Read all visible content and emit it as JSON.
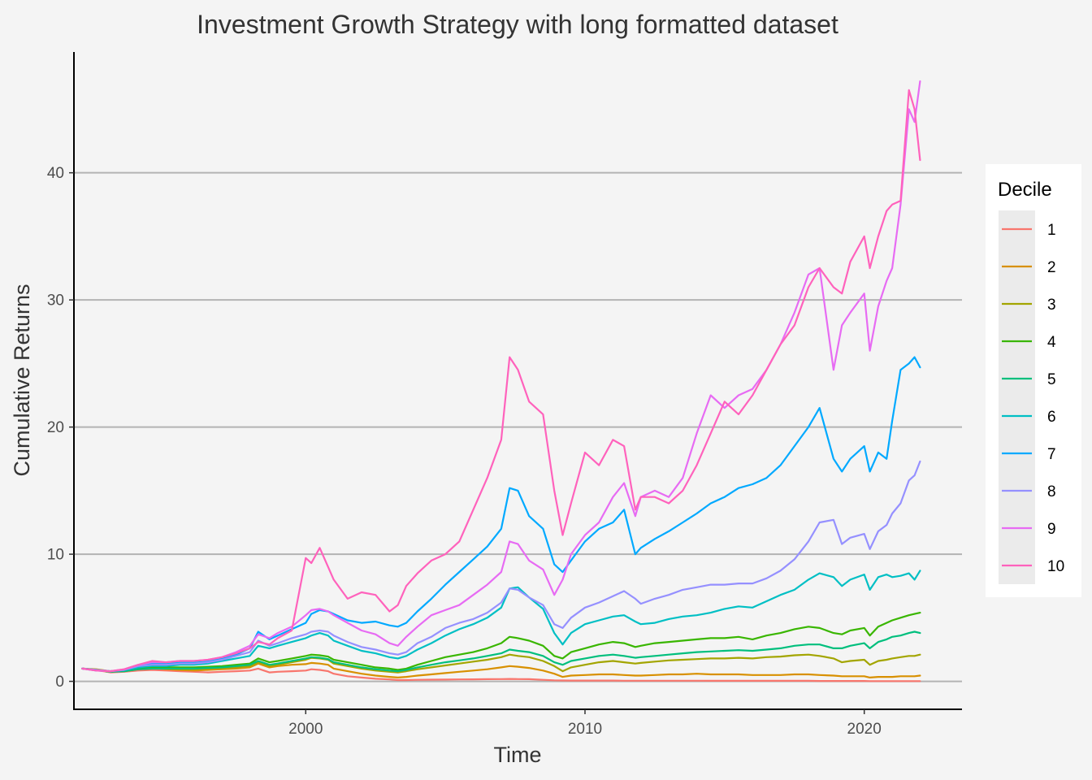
{
  "chart_data": {
    "type": "line",
    "title": "Investment Growth Strategy with long formatted dataset",
    "xlabel": "Time",
    "ylabel": "Cumulative Returns",
    "xlim": [
      1991.7,
      2023.5
    ],
    "ylim": [
      -2.2,
      49.5
    ],
    "x_ticks": [
      2000,
      2010,
      2020
    ],
    "x_tick_labels": [
      "2000",
      "2010",
      "2020"
    ],
    "y_ticks": [
      0,
      10,
      20,
      30,
      40
    ],
    "y_tick_labels": [
      "0",
      "10",
      "20",
      "30",
      "40"
    ],
    "grid": "horizontal major",
    "legend": {
      "title": "Decile",
      "position": "right"
    },
    "x": [
      1992.0,
      1992.5,
      1993.0,
      1993.5,
      1994.0,
      1994.5,
      1995.0,
      1995.5,
      1996.0,
      1996.5,
      1997.0,
      1997.5,
      1998.0,
      1998.3,
      1998.7,
      1999.0,
      1999.5,
      2000.0,
      2000.2,
      2000.5,
      2000.8,
      2001.0,
      2001.5,
      2002.0,
      2002.5,
      2003.0,
      2003.3,
      2003.6,
      2004.0,
      2004.5,
      2005.0,
      2005.5,
      2006.0,
      2006.5,
      2007.0,
      2007.3,
      2007.6,
      2008.0,
      2008.5,
      2008.9,
      2009.2,
      2009.5,
      2010.0,
      2010.5,
      2011.0,
      2011.4,
      2011.8,
      2012.0,
      2012.5,
      2013.0,
      2013.5,
      2014.0,
      2014.5,
      2015.0,
      2015.5,
      2016.0,
      2016.5,
      2017.0,
      2017.5,
      2018.0,
      2018.4,
      2018.9,
      2019.2,
      2019.5,
      2020.0,
      2020.2,
      2020.5,
      2020.8,
      2021.0,
      2021.3,
      2021.6,
      2021.8,
      2022.0
    ],
    "series": [
      {
        "name": "1",
        "color": "#F8766D",
        "values": [
          1.0,
          0.9,
          0.7,
          0.75,
          0.85,
          0.9,
          0.85,
          0.8,
          0.75,
          0.7,
          0.75,
          0.8,
          0.85,
          1.0,
          0.7,
          0.75,
          0.8,
          0.85,
          0.95,
          0.9,
          0.8,
          0.6,
          0.4,
          0.3,
          0.2,
          0.15,
          0.1,
          0.1,
          0.12,
          0.13,
          0.14,
          0.15,
          0.16,
          0.17,
          0.18,
          0.19,
          0.18,
          0.17,
          0.12,
          0.08,
          0.07,
          0.06,
          0.06,
          0.06,
          0.06,
          0.05,
          0.05,
          0.05,
          0.05,
          0.05,
          0.05,
          0.05,
          0.04,
          0.04,
          0.04,
          0.04,
          0.04,
          0.04,
          0.04,
          0.04,
          0.03,
          0.03,
          0.03,
          0.03,
          0.03,
          0.02,
          0.02,
          0.02,
          0.02,
          0.02,
          0.02,
          0.02,
          0.02
        ]
      },
      {
        "name": "2",
        "color": "#D89000",
        "values": [
          1.0,
          0.95,
          0.8,
          0.85,
          1.0,
          1.05,
          0.95,
          0.9,
          0.85,
          0.9,
          0.95,
          1.0,
          1.1,
          1.4,
          1.1,
          1.2,
          1.3,
          1.35,
          1.45,
          1.4,
          1.3,
          1.0,
          0.8,
          0.6,
          0.45,
          0.35,
          0.3,
          0.35,
          0.45,
          0.55,
          0.65,
          0.75,
          0.85,
          0.95,
          1.1,
          1.2,
          1.15,
          1.05,
          0.85,
          0.6,
          0.35,
          0.45,
          0.5,
          0.55,
          0.55,
          0.5,
          0.45,
          0.45,
          0.5,
          0.55,
          0.55,
          0.6,
          0.55,
          0.55,
          0.55,
          0.5,
          0.5,
          0.5,
          0.55,
          0.55,
          0.5,
          0.45,
          0.4,
          0.4,
          0.4,
          0.3,
          0.35,
          0.35,
          0.35,
          0.4,
          0.4,
          0.4,
          0.45
        ]
      },
      {
        "name": "3",
        "color": "#A3A500",
        "values": [
          1.0,
          0.9,
          0.75,
          0.8,
          0.95,
          1.0,
          1.0,
          0.95,
          0.95,
          1.0,
          1.05,
          1.1,
          1.2,
          1.5,
          1.2,
          1.3,
          1.5,
          1.7,
          1.85,
          1.8,
          1.7,
          1.4,
          1.2,
          1.0,
          0.85,
          0.75,
          0.7,
          0.8,
          0.95,
          1.1,
          1.25,
          1.4,
          1.55,
          1.7,
          1.9,
          2.1,
          2.0,
          1.9,
          1.6,
          1.2,
          0.8,
          1.1,
          1.3,
          1.5,
          1.6,
          1.5,
          1.4,
          1.45,
          1.55,
          1.65,
          1.7,
          1.75,
          1.8,
          1.8,
          1.85,
          1.8,
          1.9,
          1.95,
          2.05,
          2.1,
          2.0,
          1.8,
          1.5,
          1.6,
          1.7,
          1.3,
          1.6,
          1.7,
          1.8,
          1.9,
          2.0,
          2.0,
          2.1
        ]
      },
      {
        "name": "4",
        "color": "#39B600",
        "values": [
          1.0,
          0.9,
          0.75,
          0.85,
          1.0,
          1.1,
          1.1,
          1.1,
          1.1,
          1.15,
          1.2,
          1.3,
          1.4,
          1.8,
          1.5,
          1.6,
          1.8,
          2.0,
          2.1,
          2.05,
          1.95,
          1.7,
          1.5,
          1.3,
          1.1,
          1.0,
          0.9,
          1.0,
          1.3,
          1.6,
          1.9,
          2.1,
          2.3,
          2.6,
          3.0,
          3.5,
          3.4,
          3.2,
          2.8,
          2.0,
          1.8,
          2.3,
          2.6,
          2.9,
          3.1,
          3.0,
          2.7,
          2.8,
          3.0,
          3.1,
          3.2,
          3.3,
          3.4,
          3.4,
          3.5,
          3.3,
          3.6,
          3.8,
          4.1,
          4.3,
          4.2,
          3.8,
          3.7,
          4.0,
          4.2,
          3.6,
          4.3,
          4.6,
          4.8,
          5.0,
          5.2,
          5.3,
          5.4
        ]
      },
      {
        "name": "5",
        "color": "#00BF7D",
        "values": [
          1.0,
          0.9,
          0.75,
          0.8,
          0.95,
          1.0,
          1.0,
          1.0,
          1.0,
          1.05,
          1.1,
          1.2,
          1.3,
          1.6,
          1.3,
          1.4,
          1.6,
          1.8,
          1.9,
          1.85,
          1.75,
          1.5,
          1.3,
          1.1,
          0.95,
          0.85,
          0.8,
          0.9,
          1.1,
          1.3,
          1.5,
          1.65,
          1.8,
          2.0,
          2.2,
          2.5,
          2.4,
          2.3,
          2.0,
          1.5,
          1.3,
          1.6,
          1.8,
          2.0,
          2.1,
          2.0,
          1.85,
          1.9,
          2.0,
          2.1,
          2.2,
          2.3,
          2.35,
          2.4,
          2.45,
          2.4,
          2.5,
          2.6,
          2.8,
          2.9,
          2.9,
          2.6,
          2.6,
          2.8,
          3.0,
          2.6,
          3.1,
          3.3,
          3.5,
          3.6,
          3.8,
          3.9,
          3.8
        ]
      },
      {
        "name": "6",
        "color": "#00BFC4",
        "values": [
          1.0,
          0.9,
          0.8,
          0.9,
          1.1,
          1.2,
          1.2,
          1.3,
          1.3,
          1.4,
          1.6,
          1.8,
          2.0,
          2.8,
          2.6,
          2.8,
          3.1,
          3.4,
          3.6,
          3.8,
          3.6,
          3.2,
          2.8,
          2.4,
          2.2,
          1.9,
          1.8,
          2.0,
          2.5,
          3.0,
          3.6,
          4.1,
          4.5,
          5.0,
          5.8,
          7.3,
          7.4,
          6.6,
          5.7,
          3.8,
          2.9,
          3.8,
          4.5,
          4.8,
          5.1,
          5.2,
          4.7,
          4.5,
          4.6,
          4.9,
          5.1,
          5.2,
          5.4,
          5.7,
          5.9,
          5.8,
          6.3,
          6.8,
          7.2,
          8.0,
          8.5,
          8.2,
          7.5,
          8.0,
          8.4,
          7.2,
          8.2,
          8.4,
          8.2,
          8.3,
          8.5,
          8.0,
          8.7
        ]
      },
      {
        "name": "7",
        "color": "#00A9FF",
        "values": [
          1.0,
          0.85,
          0.8,
          0.9,
          1.2,
          1.4,
          1.4,
          1.5,
          1.5,
          1.6,
          1.8,
          2.1,
          2.6,
          3.9,
          3.3,
          3.6,
          4.1,
          4.6,
          5.3,
          5.6,
          5.5,
          5.3,
          4.8,
          4.6,
          4.7,
          4.4,
          4.3,
          4.6,
          5.5,
          6.5,
          7.6,
          8.6,
          9.6,
          10.6,
          12.0,
          15.2,
          15.0,
          13.0,
          12.0,
          9.2,
          8.6,
          9.5,
          11.0,
          12.0,
          12.5,
          13.5,
          10.0,
          10.5,
          11.2,
          11.8,
          12.5,
          13.2,
          14.0,
          14.5,
          15.2,
          15.5,
          16.0,
          17.0,
          18.5,
          20.0,
          21.5,
          17.5,
          16.5,
          17.5,
          18.5,
          16.5,
          18.0,
          17.5,
          20.5,
          24.5,
          25.0,
          25.5,
          24.7
        ]
      },
      {
        "name": "8",
        "color": "#9590FF",
        "values": [
          1.0,
          0.9,
          0.8,
          0.9,
          1.2,
          1.3,
          1.3,
          1.4,
          1.4,
          1.5,
          1.7,
          2.0,
          2.3,
          3.2,
          2.8,
          3.0,
          3.4,
          3.7,
          3.9,
          4.0,
          3.9,
          3.6,
          3.1,
          2.7,
          2.5,
          2.2,
          2.1,
          2.3,
          3.0,
          3.5,
          4.2,
          4.6,
          4.9,
          5.4,
          6.2,
          7.3,
          7.2,
          6.6,
          6.0,
          4.5,
          4.2,
          5.0,
          5.8,
          6.2,
          6.7,
          7.1,
          6.5,
          6.1,
          6.5,
          6.8,
          7.2,
          7.4,
          7.6,
          7.6,
          7.7,
          7.7,
          8.1,
          8.7,
          9.6,
          11.0,
          12.5,
          12.7,
          10.8,
          11.3,
          11.6,
          10.4,
          11.8,
          12.3,
          13.2,
          14.0,
          15.8,
          16.2,
          17.3
        ]
      },
      {
        "name": "9",
        "color": "#E76BF3",
        "values": [
          1.0,
          0.85,
          0.8,
          0.95,
          1.3,
          1.5,
          1.5,
          1.6,
          1.6,
          1.7,
          1.9,
          2.3,
          2.8,
          3.7,
          3.4,
          3.8,
          4.3,
          5.2,
          5.6,
          5.7,
          5.5,
          5.2,
          4.6,
          4.0,
          3.7,
          3.0,
          2.8,
          3.5,
          4.3,
          5.2,
          5.6,
          6.0,
          6.8,
          7.6,
          8.6,
          11.0,
          10.8,
          9.5,
          8.8,
          6.8,
          8.0,
          10.0,
          11.5,
          12.5,
          14.5,
          15.6,
          13.0,
          14.5,
          15.0,
          14.5,
          16.0,
          19.5,
          22.5,
          21.5,
          22.5,
          23.0,
          24.5,
          26.5,
          29.0,
          32.0,
          32.5,
          24.5,
          28.0,
          29.0,
          30.5,
          26.0,
          29.5,
          31.5,
          32.5,
          37.5,
          45.0,
          44.0,
          47.2
        ]
      },
      {
        "name": "10",
        "color": "#FF62BC",
        "values": [
          1.0,
          0.85,
          0.8,
          0.95,
          1.3,
          1.6,
          1.5,
          1.6,
          1.6,
          1.7,
          1.9,
          2.2,
          2.6,
          3.1,
          2.9,
          3.4,
          4.0,
          9.7,
          9.3,
          10.5,
          9.0,
          8.0,
          6.5,
          7.0,
          6.8,
          5.5,
          6.0,
          7.5,
          8.5,
          9.5,
          10.0,
          11.0,
          13.5,
          16.0,
          19.0,
          25.5,
          24.5,
          22.0,
          21.0,
          15.0,
          11.5,
          14.0,
          18.0,
          17.0,
          19.0,
          18.5,
          13.5,
          14.5,
          14.5,
          14.0,
          15.0,
          17.0,
          19.5,
          22.0,
          21.0,
          22.5,
          24.5,
          26.5,
          28.0,
          31.0,
          32.5,
          31.0,
          30.5,
          33.0,
          35.0,
          32.5,
          35.0,
          37.0,
          37.5,
          37.8,
          46.5,
          45.0,
          41.0
        ]
      }
    ]
  }
}
